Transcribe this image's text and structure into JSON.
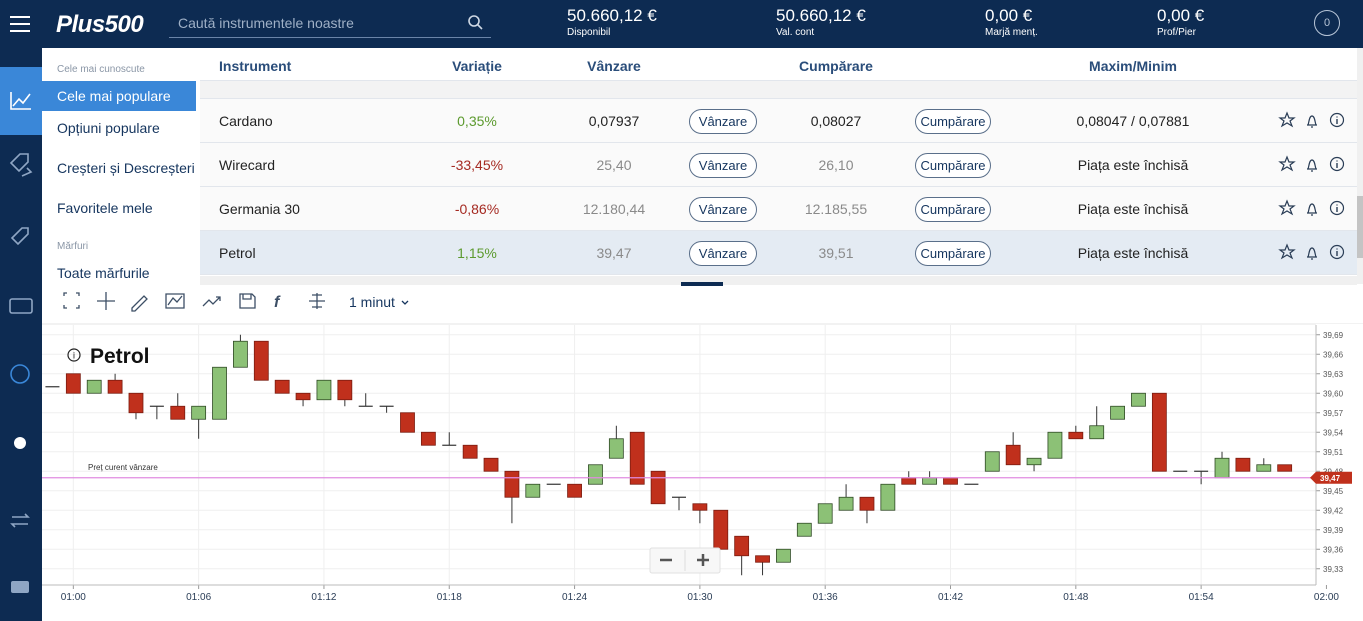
{
  "header": {
    "logo": "Plus500",
    "search_placeholder": "Caută instrumentele noastre",
    "stats": [
      {
        "value": "50.660,12 €",
        "label": "Disponibil"
      },
      {
        "value": "50.660,12 €",
        "label": "Val. cont"
      },
      {
        "value": "0,00 €",
        "label": "Marjă menț."
      },
      {
        "value": "0,00 €",
        "label": "Prof/Pier"
      }
    ],
    "notifications": "0"
  },
  "menu": [
    {
      "text": "Cele mai cunoscute",
      "kind": "section"
    },
    {
      "text": "Cele mai populare",
      "kind": "item",
      "active": true
    },
    {
      "text": "Opțiuni populare",
      "kind": "item"
    },
    {
      "text": "Creșteri și Descreșteri",
      "kind": "item"
    },
    {
      "text": "Favoritele mele",
      "kind": "item"
    },
    {
      "text": "Mărfuri",
      "kind": "section"
    },
    {
      "text": "Toate mărfurile",
      "kind": "item"
    }
  ],
  "table": {
    "columns": [
      "Instrument",
      "Variație",
      "Vânzare",
      "Cumpărare",
      "Maxim/Minim"
    ],
    "buttons": {
      "sell": "Vânzare",
      "buy": "Cumpărare"
    },
    "rows": [
      {
        "instrument": "Cardano",
        "change": "0,35%",
        "direction": "up",
        "sell": "0,07937",
        "buy": "0,08027",
        "high_low": "0,08047 / 0,07881",
        "market_open": true
      },
      {
        "instrument": "Wirecard",
        "change": "-33,45%",
        "direction": "down",
        "sell": "25,40",
        "buy": "26,10",
        "high_low": "Piața este închisă",
        "market_open": false
      },
      {
        "instrument": "Germania 30",
        "change": "-0,86%",
        "direction": "down",
        "sell": "12.180,44",
        "buy": "12.185,55",
        "high_low": "Piața este închisă",
        "market_open": false
      },
      {
        "instrument": "Petrol",
        "change": "1,15%",
        "direction": "up",
        "sell": "39,47",
        "buy": "39,51",
        "high_low": "Piața este închisă",
        "market_open": false,
        "selected": true
      }
    ]
  },
  "chart_data": {
    "type": "candlestick",
    "title": "Petrol",
    "timeframe": "1 minut",
    "x": [
      "00:59",
      "01:00",
      "01:01",
      "01:02",
      "01:03",
      "01:04",
      "01:05",
      "01:06",
      "01:07",
      "01:08",
      "01:09",
      "01:10",
      "01:11",
      "01:12",
      "01:13",
      "01:14",
      "01:15",
      "01:16",
      "01:17",
      "01:18",
      "01:19",
      "01:20",
      "01:21",
      "01:22",
      "01:23",
      "01:24",
      "01:25",
      "01:26",
      "01:27",
      "01:28",
      "01:29",
      "01:30",
      "01:31",
      "01:32",
      "01:33",
      "01:34",
      "01:35",
      "01:36",
      "01:37",
      "01:38",
      "01:39",
      "01:40",
      "01:41",
      "01:42",
      "01:43",
      "01:44",
      "01:45",
      "01:46",
      "01:47",
      "01:48",
      "01:49",
      "01:50",
      "01:51",
      "01:52",
      "01:53",
      "01:54",
      "01:55",
      "01:56",
      "01:57",
      "01:58"
    ],
    "open": [
      39.61,
      39.63,
      39.6,
      39.62,
      39.6,
      39.58,
      39.58,
      39.56,
      39.56,
      39.64,
      39.68,
      39.62,
      39.6,
      39.59,
      39.62,
      39.58,
      39.58,
      39.57,
      39.54,
      39.52,
      39.52,
      39.5,
      39.48,
      39.44,
      39.46,
      39.46,
      39.46,
      39.5,
      39.54,
      39.48,
      39.44,
      39.43,
      39.42,
      39.38,
      39.35,
      39.34,
      39.38,
      39.4,
      39.42,
      39.44,
      39.42,
      39.47,
      39.46,
      39.47,
      39.46,
      39.48,
      39.52,
      39.49,
      39.5,
      39.54,
      39.53,
      39.56,
      39.58,
      39.6,
      39.48,
      39.48,
      39.47,
      39.5,
      39.48,
      39.49
    ],
    "high": [
      39.61,
      39.63,
      39.62,
      39.63,
      39.6,
      39.58,
      39.6,
      39.58,
      39.64,
      39.69,
      39.68,
      39.62,
      39.6,
      39.62,
      39.62,
      39.6,
      39.58,
      39.57,
      39.54,
      39.54,
      39.52,
      39.5,
      39.48,
      39.46,
      39.46,
      39.46,
      39.49,
      39.55,
      39.54,
      39.48,
      39.44,
      39.43,
      39.42,
      39.38,
      39.35,
      39.36,
      39.4,
      39.43,
      39.46,
      39.44,
      39.46,
      39.48,
      39.48,
      39.47,
      39.46,
      39.51,
      39.54,
      39.5,
      39.54,
      39.55,
      39.58,
      39.58,
      39.6,
      39.6,
      39.48,
      39.48,
      39.51,
      39.5,
      39.5,
      39.49
    ],
    "low": [
      39.61,
      39.6,
      39.6,
      39.6,
      39.56,
      39.56,
      39.56,
      39.53,
      39.56,
      39.64,
      39.62,
      39.6,
      39.58,
      39.59,
      39.58,
      39.58,
      39.57,
      39.54,
      39.52,
      39.52,
      39.5,
      39.48,
      39.4,
      39.44,
      39.46,
      39.44,
      39.46,
      39.5,
      39.46,
      39.43,
      39.42,
      39.4,
      39.36,
      39.32,
      39.32,
      39.34,
      39.38,
      39.4,
      39.42,
      39.4,
      39.42,
      39.46,
      39.46,
      39.46,
      39.46,
      39.48,
      39.49,
      39.48,
      39.5,
      39.53,
      39.53,
      39.56,
      39.58,
      39.48,
      39.48,
      39.46,
      39.47,
      39.48,
      39.48,
      39.48
    ],
    "close": [
      39.61,
      39.6,
      39.62,
      39.6,
      39.57,
      39.58,
      39.56,
      39.58,
      39.64,
      39.68,
      39.62,
      39.6,
      39.59,
      39.62,
      39.59,
      39.58,
      39.58,
      39.54,
      39.52,
      39.52,
      39.5,
      39.48,
      39.44,
      39.46,
      39.46,
      39.44,
      39.49,
      39.53,
      39.46,
      39.43,
      39.44,
      39.42,
      39.36,
      39.35,
      39.34,
      39.36,
      39.4,
      39.43,
      39.44,
      39.42,
      39.46,
      39.46,
      39.47,
      39.46,
      39.46,
      39.51,
      39.49,
      39.5,
      39.54,
      39.53,
      39.55,
      39.58,
      39.6,
      39.48,
      39.48,
      39.48,
      39.5,
      39.48,
      39.49,
      39.48
    ],
    "up_color": "#8cc176",
    "down_color": "#c0301c",
    "xlim": [
      "00:58:30",
      "01:59:30"
    ],
    "xticks": [
      "01:00",
      "01:06",
      "01:12",
      "01:18",
      "01:24",
      "01:30",
      "01:36",
      "01:42",
      "01:48",
      "01:54",
      "02:00"
    ],
    "ylim": [
      39.305,
      39.705
    ],
    "yticks": [
      {
        "value": 39.69,
        "label": "39,69"
      },
      {
        "value": 39.66,
        "label": "39,66"
      },
      {
        "value": 39.63,
        "label": "39,63"
      },
      {
        "value": 39.6,
        "label": "39,60"
      },
      {
        "value": 39.57,
        "label": "39,57"
      },
      {
        "value": 39.54,
        "label": "39,54"
      },
      {
        "value": 39.51,
        "label": "39,51"
      },
      {
        "value": 39.48,
        "label": "39,48"
      },
      {
        "value": 39.45,
        "label": "39,45"
      },
      {
        "value": 39.42,
        "label": "39,42"
      },
      {
        "value": 39.39,
        "label": "39,39"
      },
      {
        "value": 39.36,
        "label": "39,36"
      },
      {
        "value": 39.33,
        "label": "39,33"
      }
    ],
    "grid": true,
    "current_price": {
      "label": "Preț curent vânzare",
      "value": 39.47,
      "value_label": "39,47",
      "color": "#e08be0",
      "tag_color": "#c0301c"
    }
  }
}
